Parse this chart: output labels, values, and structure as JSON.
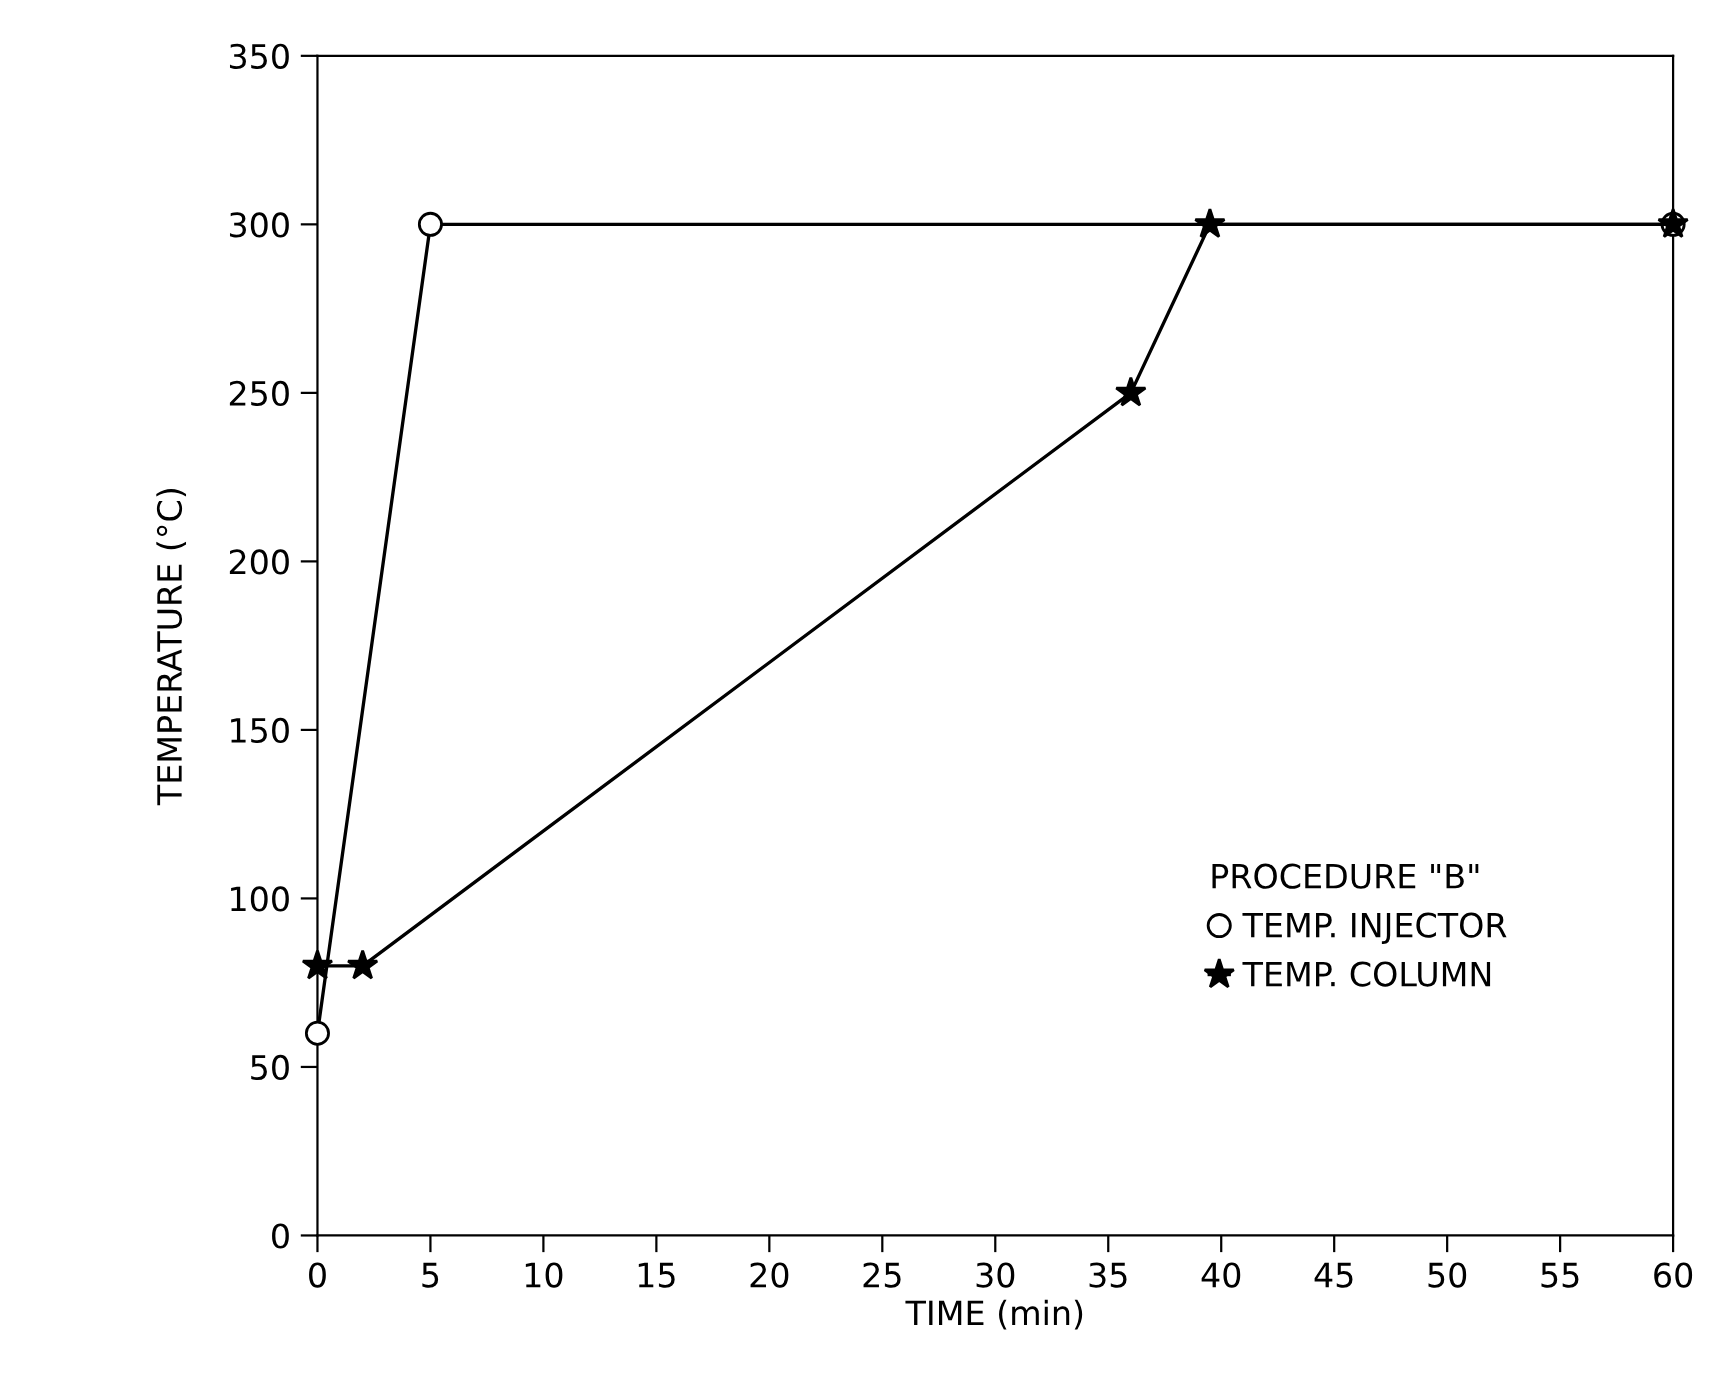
{
  "chart_data": {
    "type": "line",
    "xlabel": "TIME (min)",
    "ylabel": "TEMPERATURE (°C)",
    "legend_title": "PROCEDURE \"B\"",
    "xlim": [
      0,
      60
    ],
    "xticks": [
      0,
      5,
      10,
      15,
      20,
      25,
      30,
      35,
      40,
      45,
      50,
      55,
      60
    ],
    "ylim": [
      0,
      350
    ],
    "yticks": [
      0,
      50,
      100,
      150,
      200,
      250,
      300,
      350
    ],
    "grid": false,
    "legend": "bottom right",
    "line_style": "solid",
    "series": [
      {
        "name": "TEMP. INJECTOR",
        "color": "#000000",
        "marker": "circle",
        "x": [
          0,
          5,
          60
        ],
        "values": [
          60,
          300,
          300
        ]
      },
      {
        "name": "TEMP. COLUMN",
        "color": "#000000",
        "marker": "star",
        "x": [
          0,
          2,
          36,
          39.5,
          60
        ],
        "values": [
          80,
          80,
          250,
          300,
          300
        ]
      }
    ]
  }
}
